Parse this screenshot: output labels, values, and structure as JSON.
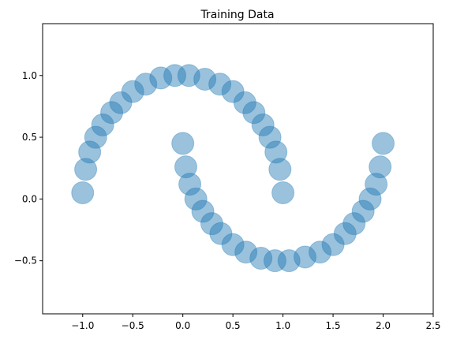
{
  "chart_data": {
    "type": "scatter",
    "title": "Training Data",
    "xlabel": "",
    "ylabel": "",
    "xlim": [
      -1.4,
      2.5
    ],
    "ylim": [
      -0.93,
      1.42
    ],
    "xticks": [
      -1.0,
      -0.5,
      0.0,
      0.5,
      1.0,
      1.5,
      2.0,
      2.5
    ],
    "xtick_labels": [
      "−1.0",
      "−0.5",
      "0.0",
      "0.5",
      "1.0",
      "1.5",
      "2.0",
      "2.5"
    ],
    "yticks": [
      -0.5,
      0.0,
      0.5,
      1.0
    ],
    "ytick_labels": [
      "−0.5",
      "0.0",
      "0.5",
      "1.0"
    ],
    "grid": false,
    "series": [
      {
        "color": "#1f77b4",
        "alpha": 0.12,
        "x": [
          -1.0,
          -0.97,
          -0.93,
          -0.87,
          -0.8,
          -0.71,
          -0.62,
          -0.5,
          -0.37,
          -0.22,
          -0.08,
          0.06,
          0.22,
          0.37,
          0.5,
          0.62,
          0.71,
          0.8,
          0.87,
          0.93,
          0.97,
          1.0,
          0.0,
          0.03,
          0.07,
          0.13,
          0.2,
          0.29,
          0.38,
          0.5,
          0.63,
          0.78,
          0.92,
          1.06,
          1.22,
          1.37,
          1.5,
          1.62,
          1.71,
          1.8,
          1.87,
          1.93,
          1.97,
          2.0
        ],
        "y": [
          0.05,
          0.24,
          0.38,
          0.5,
          0.6,
          0.7,
          0.78,
          0.87,
          0.93,
          0.98,
          1.0,
          1.0,
          0.97,
          0.93,
          0.87,
          0.78,
          0.7,
          0.6,
          0.5,
          0.38,
          0.24,
          0.05,
          0.45,
          0.26,
          0.12,
          0.0,
          -0.1,
          -0.2,
          -0.28,
          -0.37,
          -0.43,
          -0.48,
          -0.5,
          -0.5,
          -0.47,
          -0.43,
          -0.37,
          -0.28,
          -0.2,
          -0.1,
          0.0,
          0.12,
          0.26,
          0.45
        ]
      }
    ]
  }
}
